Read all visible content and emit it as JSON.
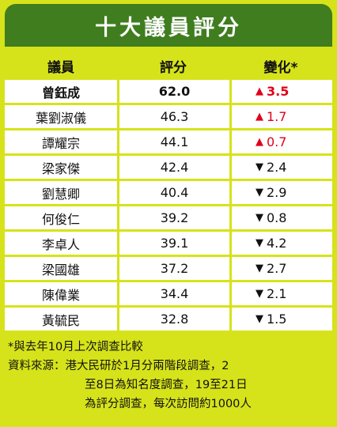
{
  "title": "十大議員評分",
  "headers": {
    "name": "議員",
    "score": "評分",
    "change": "變化*"
  },
  "rows": [
    {
      "name": "曾鈺成",
      "score": "62.0",
      "dir": "up",
      "arrow": "▲",
      "change": "3.5"
    },
    {
      "name": "葉劉淑儀",
      "score": "46.3",
      "dir": "up",
      "arrow": "▲",
      "change": "1.7"
    },
    {
      "name": "譚耀宗",
      "score": "44.1",
      "dir": "up",
      "arrow": "▲",
      "change": "0.7"
    },
    {
      "name": "梁家傑",
      "score": "42.4",
      "dir": "down",
      "arrow": "▼",
      "change": "2.4"
    },
    {
      "name": "劉慧卿",
      "score": "40.4",
      "dir": "down",
      "arrow": "▼",
      "change": "2.9"
    },
    {
      "name": "何俊仁",
      "score": "39.2",
      "dir": "down",
      "arrow": "▼",
      "change": "0.8"
    },
    {
      "name": "李卓人",
      "score": "39.1",
      "dir": "down",
      "arrow": "▼",
      "change": "4.2"
    },
    {
      "name": "梁國雄",
      "score": "37.2",
      "dir": "down",
      "arrow": "▼",
      "change": "2.7"
    },
    {
      "name": "陳偉業",
      "score": "34.4",
      "dir": "down",
      "arrow": "▼",
      "change": "2.1"
    },
    {
      "name": "黃毓民",
      "score": "32.8",
      "dir": "down",
      "arrow": "▼",
      "change": "1.5"
    }
  ],
  "notes": {
    "footnote": "*與去年10月上次調查比較",
    "source_line1": "資料來源：港大民研於1月分兩階段調查，2",
    "source_line2": "至8日為知名度調查，19至21日",
    "source_line3": "為評分調查，每次訪問約1000人"
  },
  "colors": {
    "background": "#d6e31a",
    "title_bar": "#3f7d1f",
    "up": "#e0001b",
    "down": "#111111"
  }
}
